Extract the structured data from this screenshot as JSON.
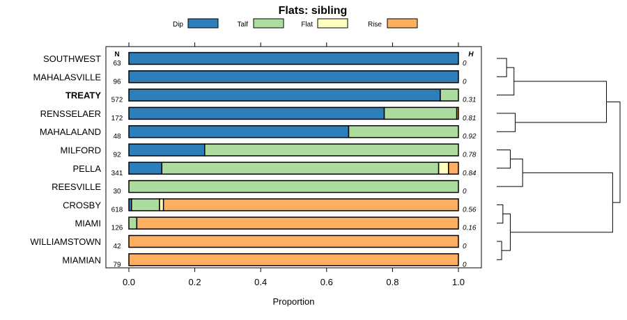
{
  "chart_data": {
    "type": "bar",
    "orientation": "horizontal",
    "stacked": true,
    "title": "Flats: sibling",
    "xlabel": "Proportion",
    "ylabel": "",
    "xlim": [
      0,
      1
    ],
    "xticks": [
      0.0,
      0.2,
      0.4,
      0.6,
      0.8,
      1.0
    ],
    "xtick_labels": [
      "0.0",
      "0.2",
      "0.4",
      "0.6",
      "0.8",
      "1.0"
    ],
    "legend": {
      "placement": "top",
      "entries": [
        {
          "name": "Dip",
          "color": "#2c7fb8"
        },
        {
          "name": "Talf",
          "color": "#addd9e"
        },
        {
          "name": "Flat",
          "color": "#ffffbf"
        },
        {
          "name": "Rise",
          "color": "#fdae61"
        }
      ]
    },
    "n_header": "N",
    "h_header": "H",
    "categories": [
      "SOUTHWEST",
      "MAHALASVILLE",
      "TREATY",
      "RENSSELAER",
      "MAHALALAND",
      "MILFORD",
      "PELLA",
      "REESVILLE",
      "CROSBY",
      "MIAMI",
      "WILLIAMSTOWN",
      "MIAMIAN"
    ],
    "highlighted": "TREATY",
    "n": [
      "63",
      "96",
      "572",
      "172",
      "48",
      "92",
      "341",
      "30",
      "618",
      "126",
      "42",
      "79"
    ],
    "h": [
      "0",
      "0",
      "0.31",
      "0.81",
      "0.92",
      "0.78",
      "0.84",
      "0",
      "0.56",
      "0.16",
      "0",
      "0"
    ],
    "series": [
      {
        "name": "Dip",
        "values": [
          1.0,
          1.0,
          0.945,
          0.775,
          0.667,
          0.23,
          0.1,
          0.0,
          0.008,
          0.0,
          0.0,
          0.0
        ]
      },
      {
        "name": "Talf",
        "values": [
          0.0,
          0.0,
          0.055,
          0.22,
          0.333,
          0.77,
          0.84,
          1.0,
          0.085,
          0.024,
          0.0,
          0.0
        ]
      },
      {
        "name": "Flat",
        "values": [
          0.0,
          0.0,
          0.0,
          0.0,
          0.0,
          0.0,
          0.03,
          0.0,
          0.012,
          0.0,
          0.0,
          0.0
        ]
      },
      {
        "name": "Rise",
        "values": [
          0.0,
          0.0,
          0.0,
          0.005,
          0.0,
          0.0,
          0.03,
          0.0,
          0.895,
          0.976,
          1.0,
          1.0
        ]
      }
    ],
    "dendrogram": {
      "merges": [
        [
          0,
          1,
          0.08
        ],
        [
          10,
          11,
          0.04
        ],
        [
          12,
          2,
          0.14
        ],
        [
          3,
          4,
          0.15
        ],
        [
          5,
          6,
          0.11
        ],
        [
          16,
          7,
          0.21
        ],
        [
          8,
          9,
          0.05
        ],
        [
          18,
          13,
          0.11
        ],
        [
          14,
          15,
          0.89
        ],
        [
          17,
          19,
          0.94
        ],
        [
          20,
          21,
          1.0
        ]
      ]
    }
  }
}
